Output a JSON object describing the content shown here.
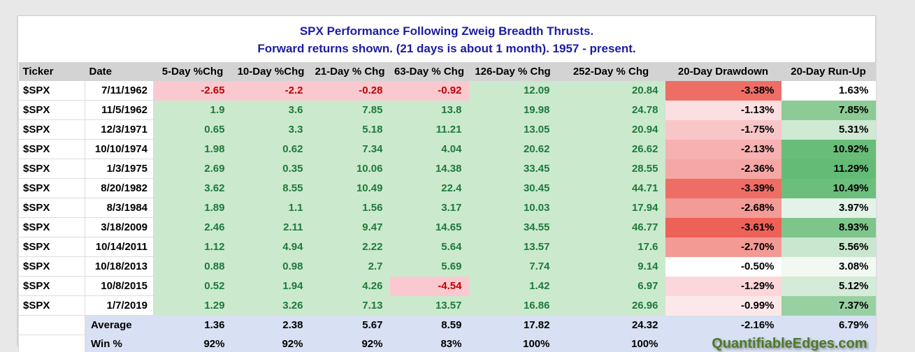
{
  "title": {
    "line1": "SPX Performance Following Zweig Breadth Thrusts.",
    "line2": "Forward returns shown. (21 days is about 1 month). 1957 - present."
  },
  "columns": [
    "Ticker",
    "Date",
    "5-Day %Chg",
    "10-Day %Chg",
    "21-Day % Chg",
    "63-Day % Chg",
    "126-Day % Chg",
    "252-Day % Chg",
    "20-Day Drawdown",
    "20-Day Run-Up"
  ],
  "colors": {
    "title-color": "#1c1ca3",
    "header-bg": "#d3d3d3",
    "pos-bg": "#cbe9cd",
    "pos-text": "#1e7a3c",
    "neg-bg": "#fac9d0",
    "neg-text": "#c00000",
    "sum-bg": "#d8e0f3",
    "wm-color": "#4d7a28"
  },
  "rows": [
    {
      "ticker": "$SPX",
      "date": "7/11/1962",
      "chg": [
        "-2.65",
        "-2.2",
        "-0.28",
        "-0.92",
        "12.09",
        "20.84"
      ],
      "drawdown": {
        "value": "-3.38%",
        "bg": "#ee6e66"
      },
      "runup": {
        "value": "1.63%",
        "bg": "#ffffff"
      }
    },
    {
      "ticker": "$SPX",
      "date": "11/5/1962",
      "chg": [
        "1.9",
        "3.6",
        "7.85",
        "13.8",
        "19.98",
        "24.78"
      ],
      "drawdown": {
        "value": "-1.13%",
        "bg": "#fcdfe1"
      },
      "runup": {
        "value": "7.85%",
        "bg": "#8cca96"
      }
    },
    {
      "ticker": "$SPX",
      "date": "12/3/1971",
      "chg": [
        "0.65",
        "3.3",
        "5.18",
        "11.21",
        "13.05",
        "20.94"
      ],
      "drawdown": {
        "value": "-1.75%",
        "bg": "#f9c6c8"
      },
      "runup": {
        "value": "5.31%",
        "bg": "#cfe9d3"
      }
    },
    {
      "ticker": "$SPX",
      "date": "10/10/1974",
      "chg": [
        "1.98",
        "0.62",
        "7.34",
        "4.04",
        "20.62",
        "26.62"
      ],
      "drawdown": {
        "value": "-2.13%",
        "bg": "#f6b1b0"
      },
      "runup": {
        "value": "10.92%",
        "bg": "#68bd79"
      }
    },
    {
      "ticker": "$SPX",
      "date": "1/3/1975",
      "chg": [
        "2.69",
        "0.35",
        "10.06",
        "14.38",
        "33.45",
        "28.55"
      ],
      "drawdown": {
        "value": "-2.36%",
        "bg": "#f5a7a5"
      },
      "runup": {
        "value": "11.29%",
        "bg": "#63bb75"
      }
    },
    {
      "ticker": "$SPX",
      "date": "8/20/1982",
      "chg": [
        "3.62",
        "8.55",
        "10.49",
        "22.4",
        "30.45",
        "44.71"
      ],
      "drawdown": {
        "value": "-3.39%",
        "bg": "#ee6e65"
      },
      "runup": {
        "value": "10.49%",
        "bg": "#6cbe7c"
      }
    },
    {
      "ticker": "$SPX",
      "date": "8/3/1984",
      "chg": [
        "1.89",
        "1.1",
        "1.56",
        "3.17",
        "10.03",
        "17.94"
      ],
      "drawdown": {
        "value": "-2.68%",
        "bg": "#f39b96"
      },
      "runup": {
        "value": "3.97%",
        "bg": "#e4f3e7"
      }
    },
    {
      "ticker": "$SPX",
      "date": "3/18/2009",
      "chg": [
        "2.46",
        "2.11",
        "9.47",
        "14.65",
        "34.55",
        "46.77"
      ],
      "drawdown": {
        "value": "-3.61%",
        "bg": "#ec6158"
      },
      "runup": {
        "value": "8.93%",
        "bg": "#7ec58b"
      }
    },
    {
      "ticker": "$SPX",
      "date": "10/14/2011",
      "chg": [
        "1.12",
        "4.94",
        "2.22",
        "5.64",
        "13.57",
        "17.6"
      ],
      "drawdown": {
        "value": "-2.70%",
        "bg": "#f39a95"
      },
      "runup": {
        "value": "5.56%",
        "bg": "#c9e6ce"
      }
    },
    {
      "ticker": "$SPX",
      "date": "10/18/2013",
      "chg": [
        "0.88",
        "0.98",
        "2.7",
        "5.69",
        "7.74",
        "9.14"
      ],
      "drawdown": {
        "value": "-0.50%",
        "bg": "#ffffff"
      },
      "runup": {
        "value": "3.08%",
        "bg": "#f1f9f2"
      }
    },
    {
      "ticker": "$SPX",
      "date": "10/8/2015",
      "chg": [
        "0.52",
        "1.94",
        "4.26",
        "-4.54",
        "1.42",
        "6.97"
      ],
      "drawdown": {
        "value": "-1.29%",
        "bg": "#fbd7d9"
      },
      "runup": {
        "value": "5.12%",
        "bg": "#d4ebd8"
      }
    },
    {
      "ticker": "$SPX",
      "date": "1/7/2019",
      "chg": [
        "1.29",
        "3.26",
        "7.13",
        "13.57",
        "16.86",
        "26.96"
      ],
      "drawdown": {
        "value": "-0.99%",
        "bg": "#fde8e9"
      },
      "runup": {
        "value": "7.37%",
        "bg": "#98d1a1"
      }
    }
  ],
  "summary": {
    "average": {
      "label": "Average",
      "values": [
        "1.36",
        "2.38",
        "5.67",
        "8.59",
        "17.82",
        "24.32",
        "-2.16%",
        "6.79%"
      ]
    },
    "win": {
      "label": "Win %",
      "values": [
        "92%",
        "92%",
        "92%",
        "83%",
        "100%",
        "100%"
      ]
    }
  },
  "watermark": "QuantifiableEdges.com"
}
